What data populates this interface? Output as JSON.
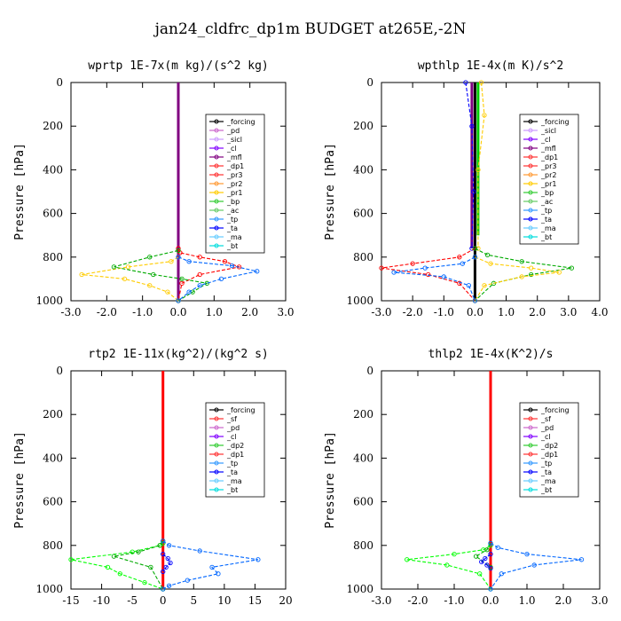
{
  "figure_title": "jan24_cldfrc_dp1m  BUDGET at265E,-2N",
  "chart_data": [
    {
      "type": "line",
      "title": "wprtp  1E-7x(m kg)/(s^2 kg)",
      "ylabel": "Pressure [hPa]",
      "xlim": [
        -3.0,
        3.0
      ],
      "ylim": [
        1000,
        0
      ],
      "xticks": [
        "-3.0",
        "-2.0",
        "-1.0",
        "0.0",
        "1.0",
        "2.0",
        "3.0"
      ],
      "yticks": [
        "0",
        "200",
        "400",
        "600",
        "800",
        "1000"
      ],
      "legend_position": "top-right",
      "legend": [
        "_forcing",
        "_pd",
        "_sicl",
        "_cl",
        "_mfl",
        "_dp1",
        "_pr3",
        "_pr2",
        "_pr1",
        "_bp",
        "_ac",
        "_tp",
        "_ta",
        "_ma",
        "_bt"
      ],
      "series": [
        {
          "name": "_forcing",
          "color": "#000000",
          "x": [
            0,
            0
          ],
          "y": [
            0,
            1000
          ]
        },
        {
          "name": "_mfl",
          "color": "#800080",
          "x": [
            0,
            0
          ],
          "y": [
            0,
            1000
          ]
        },
        {
          "name": "_pr3",
          "color": "#ff0000",
          "x": [
            0,
            0.05,
            0.6,
            1.3,
            1.7,
            0.6,
            0.1,
            0
          ],
          "y": [
            760,
            780,
            800,
            820,
            845,
            880,
            920,
            1000
          ]
        },
        {
          "name": "_pr1",
          "color": "#ffcc00",
          "x": [
            0,
            -0.2,
            -1.4,
            -2.7,
            -1.5,
            -0.8,
            -0.3,
            0
          ],
          "y": [
            800,
            820,
            845,
            880,
            900,
            930,
            960,
            1000
          ]
        },
        {
          "name": "_bp",
          "color": "#00aa00",
          "x": [
            0,
            -0.8,
            -1.8,
            -0.7,
            0.1,
            0.8,
            0.4,
            0
          ],
          "y": [
            770,
            800,
            845,
            880,
            900,
            920,
            960,
            1000
          ]
        },
        {
          "name": "_tp",
          "color": "#0066ff",
          "x": [
            0,
            0.3,
            1.5,
            2.2,
            1.2,
            0.6,
            0.3,
            0
          ],
          "y": [
            800,
            820,
            840,
            865,
            900,
            930,
            960,
            1000
          ]
        }
      ]
    },
    {
      "type": "line",
      "title": "wpthlp  1E-4x(m K)/s^2",
      "ylabel": "Pressure [hPa]",
      "xlim": [
        -3.0,
        4.0
      ],
      "ylim": [
        1000,
        0
      ],
      "xticks": [
        "-3.0",
        "-2.0",
        "-1.0",
        "0.0",
        "1.0",
        "2.0",
        "3.0",
        "4.0"
      ],
      "yticks": [
        "0",
        "200",
        "400",
        "600",
        "800",
        "1000"
      ],
      "legend_position": "top-right",
      "legend": [
        "_forcing",
        "_sicl",
        "_cl",
        "_mfl",
        "_dp1",
        "_pr3",
        "_pr2",
        "_pr1",
        "_bp",
        "_ac",
        "_tp",
        "_ta",
        "_ma",
        "_bt"
      ],
      "series": [
        {
          "name": "_forcing",
          "color": "#000000",
          "x": [
            0,
            0
          ],
          "y": [
            0,
            1000
          ]
        },
        {
          "name": "_ac",
          "color": "#00cc00",
          "x": [
            0.1,
            0.1
          ],
          "y": [
            0,
            700
          ]
        },
        {
          "name": "_mfl",
          "color": "#800080",
          "x": [
            -0.1,
            -0.1
          ],
          "y": [
            0,
            760
          ]
        },
        {
          "name": "_ta",
          "color": "#0000ff",
          "x": [
            -0.3,
            -0.1,
            -0.05,
            -0.1
          ],
          "y": [
            0,
            200,
            500,
            760
          ]
        },
        {
          "name": "_pr1",
          "color": "#ffcc00",
          "x": [
            0.2,
            0.3,
            0.1,
            0.1
          ],
          "y": [
            0,
            150,
            400,
            760
          ]
        },
        {
          "name": "_dp1",
          "color": "#ff0000",
          "x": [
            0,
            -0.5,
            -2.0,
            -3.0,
            -1.5,
            -0.5,
            0
          ],
          "y": [
            760,
            800,
            830,
            850,
            880,
            920,
            1000
          ]
        },
        {
          "name": "_bp",
          "color": "#00aa00",
          "x": [
            0,
            0.4,
            1.5,
            3.1,
            1.8,
            0.6,
            0
          ],
          "y": [
            760,
            790,
            820,
            850,
            880,
            920,
            1000
          ]
        },
        {
          "name": "_pr2",
          "color": "#ffcc00",
          "x": [
            0,
            0.5,
            1.8,
            2.7,
            1.5,
            0.3,
            0
          ],
          "y": [
            800,
            830,
            850,
            870,
            890,
            930,
            1000
          ]
        },
        {
          "name": "_tp",
          "color": "#0066ff",
          "x": [
            0,
            -0.4,
            -1.6,
            -2.6,
            -1.0,
            -0.2,
            0
          ],
          "y": [
            800,
            830,
            850,
            870,
            890,
            930,
            1000
          ]
        }
      ]
    },
    {
      "type": "line",
      "title": "rtp2  1E-11x(kg^2)/(kg^2 s)",
      "ylabel": "Pressure [hPa]",
      "xlim": [
        -15,
        20
      ],
      "ylim": [
        1000,
        0
      ],
      "xticks": [
        "-15",
        "-10",
        "-5",
        "0",
        "5",
        "10",
        "15",
        "20"
      ],
      "yticks": [
        "0",
        "200",
        "400",
        "600",
        "800",
        "1000"
      ],
      "legend_position": "top-right",
      "legend": [
        "_forcing",
        "_sf",
        "_pd",
        "_cl",
        "_dp2",
        "_dp1",
        "_tp",
        "_ta",
        "_ma",
        "_bt"
      ],
      "series": [
        {
          "name": "_forcing",
          "color": "#ff0000",
          "x": [
            0,
            0
          ],
          "y": [
            0,
            1000
          ]
        },
        {
          "name": "_dp1",
          "color": "#00ff00",
          "x": [
            0,
            -0.5,
            -5,
            -15,
            -9,
            -7,
            -3,
            0
          ],
          "y": [
            790,
            800,
            830,
            865,
            900,
            930,
            970,
            1000
          ]
        },
        {
          "name": "_dp2",
          "color": "#00aa00",
          "x": [
            0,
            -0.5,
            -4,
            -8,
            -2,
            0
          ],
          "y": [
            780,
            800,
            830,
            850,
            900,
            1000
          ]
        },
        {
          "name": "_tp",
          "color": "#0066ff",
          "x": [
            0,
            1,
            6,
            15.5,
            8,
            9,
            4,
            1,
            0
          ],
          "y": [
            780,
            800,
            825,
            865,
            900,
            930,
            960,
            985,
            1000
          ]
        },
        {
          "name": "_ta",
          "color": "#0000ff",
          "x": [
            0,
            0.8,
            1.2,
            0.5,
            0
          ],
          "y": [
            840,
            860,
            880,
            900,
            920
          ]
        }
      ]
    },
    {
      "type": "line",
      "title": "thlp2  1E-4x(K^2)/s",
      "ylabel": "Pressure [hPa]",
      "xlim": [
        -3.0,
        3.0
      ],
      "ylim": [
        1000,
        0
      ],
      "xticks": [
        "-3.0",
        "-2.0",
        "-1.0",
        "0.0",
        "1.0",
        "2.0",
        "3.0"
      ],
      "yticks": [
        "0",
        "200",
        "400",
        "600",
        "800",
        "1000"
      ],
      "legend_position": "top-right",
      "legend": [
        "_forcing",
        "_sf",
        "_pd",
        "_cl",
        "_dp2",
        "_dp1",
        "_tp",
        "_ta",
        "_ma",
        "_bt"
      ],
      "series": [
        {
          "name": "_forcing",
          "color": "#ff0000",
          "x": [
            0,
            0
          ],
          "y": [
            0,
            1000
          ]
        },
        {
          "name": "_dp1",
          "color": "#00ff00",
          "x": [
            0,
            -0.2,
            -1.0,
            -2.3,
            -1.2,
            -0.3,
            0
          ],
          "y": [
            800,
            820,
            840,
            865,
            890,
            930,
            1000
          ]
        },
        {
          "name": "_dp2",
          "color": "#00aa00",
          "x": [
            0,
            -0.1,
            -0.4,
            0
          ],
          "y": [
            790,
            820,
            850,
            900
          ]
        },
        {
          "name": "_tp",
          "color": "#0066ff",
          "x": [
            0,
            0.2,
            1.0,
            2.5,
            1.2,
            0.3,
            0
          ],
          "y": [
            790,
            810,
            840,
            865,
            890,
            930,
            1000
          ]
        },
        {
          "name": "_ta",
          "color": "#0000ff",
          "x": [
            0,
            -0.15,
            -0.25,
            -0.1,
            0
          ],
          "y": [
            840,
            860,
            875,
            890,
            905
          ]
        }
      ]
    }
  ]
}
